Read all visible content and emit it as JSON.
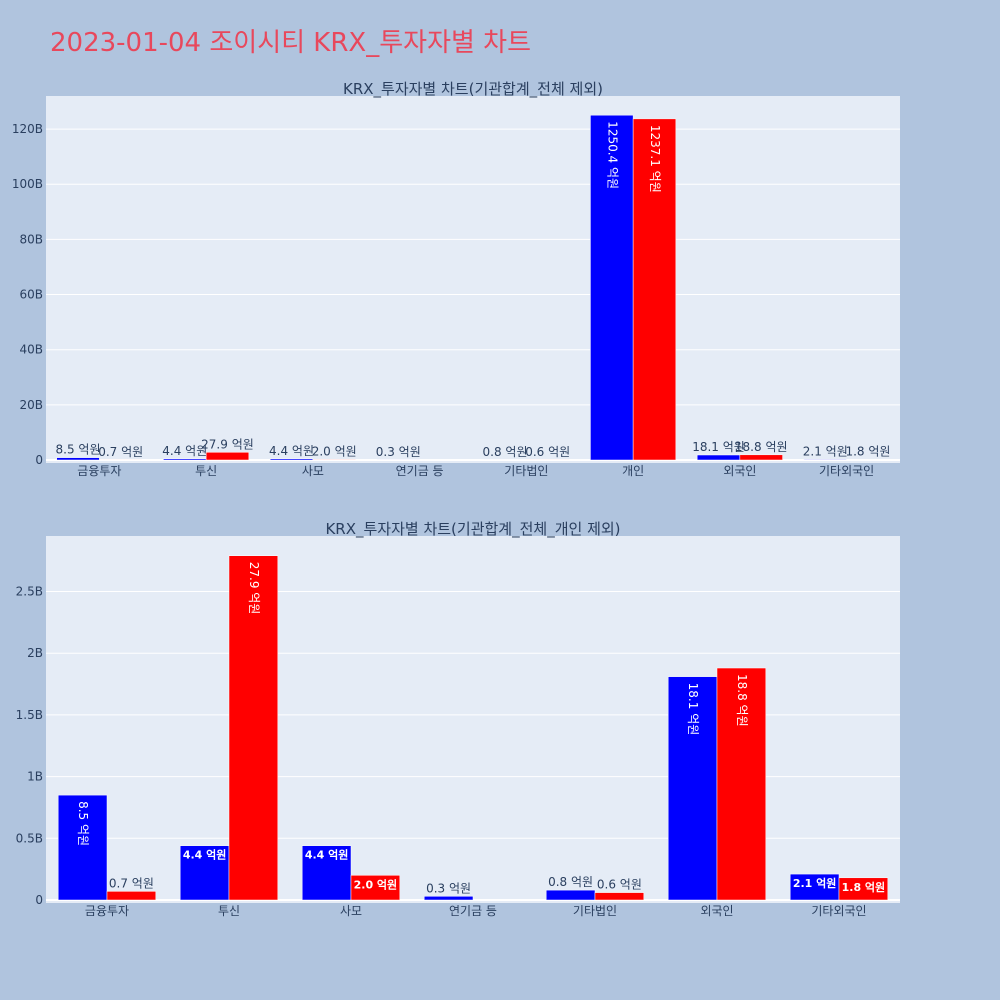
{
  "title": "2023-01-04 조이시티 KRX_투자자별 차트",
  "colors": {
    "background": "#b0c4de",
    "plot_background": "#e5ecf6",
    "grid": "#ffffff",
    "title": "#e8485c",
    "text": "#2a3f5f",
    "series_blue": "#0000ff",
    "series_red": "#ff0000"
  },
  "chart_data": [
    {
      "type": "bar",
      "title": "KRX_투자자별 차트(기관합계_전체 제외)",
      "xlabel": "",
      "ylabel": "",
      "categories": [
        "금융투자",
        "투신",
        "사모",
        "연기금 등",
        "기타법인",
        "개인",
        "외국인",
        "기타외국인"
      ],
      "ylim": [
        0,
        132000000000
      ],
      "yticks": [
        0,
        20000000000,
        40000000000,
        60000000000,
        80000000000,
        100000000000,
        120000000000
      ],
      "ytick_labels": [
        "0",
        "20B",
        "40B",
        "60B",
        "80B",
        "100B",
        "120B"
      ],
      "grid": true,
      "series": [
        {
          "color": "#0000ff",
          "values": [
            850000000,
            440000000,
            440000000,
            30000000,
            80000000,
            125040000000,
            1810000000,
            210000000
          ],
          "labels": [
            "8.5 억원",
            "4.4 억원",
            "4.4 억원",
            "0.3 억원",
            "0.8 억원",
            "1250.4 억원",
            "18.1 억원",
            "2.1 억원"
          ]
        },
        {
          "color": "#ff0000",
          "values": [
            70000000,
            2790000000,
            200000000,
            null,
            60000000,
            123710000000,
            1880000000,
            180000000
          ],
          "labels": [
            "0.7 억원",
            "27.9 억원",
            "2.0 억원",
            "",
            "0.6 억원",
            "1237.1 억원",
            "18.8 억원",
            "1.8 억원"
          ]
        }
      ]
    },
    {
      "type": "bar",
      "title": "KRX_투자자별 차트(기관합계_전체_개인 제외)",
      "xlabel": "",
      "ylabel": "",
      "categories": [
        "금융투자",
        "투신",
        "사모",
        "연기금 등",
        "기타법인",
        "외국인",
        "기타외국인"
      ],
      "ylim": [
        0,
        2950000000
      ],
      "yticks": [
        0,
        500000000,
        1000000000,
        1500000000,
        2000000000,
        2500000000
      ],
      "ytick_labels": [
        "0",
        "0.5B",
        "1B",
        "1.5B",
        "2B",
        "2.5B"
      ],
      "grid": true,
      "series": [
        {
          "color": "#0000ff",
          "values": [
            850000000,
            440000000,
            440000000,
            30000000,
            80000000,
            1810000000,
            210000000
          ],
          "labels": [
            "8.5 억원",
            "4.4 억원",
            "4.4 억원",
            "0.3 억원",
            "0.8 억원",
            "18.1 억원",
            "2.1 억원"
          ]
        },
        {
          "color": "#ff0000",
          "values": [
            70000000,
            2790000000,
            200000000,
            null,
            60000000,
            1880000000,
            180000000
          ],
          "labels": [
            "0.7 억원",
            "27.9 억원",
            "2.0 억원",
            "",
            "0.6 억원",
            "18.8 억원",
            "1.8 억원"
          ]
        }
      ]
    }
  ]
}
